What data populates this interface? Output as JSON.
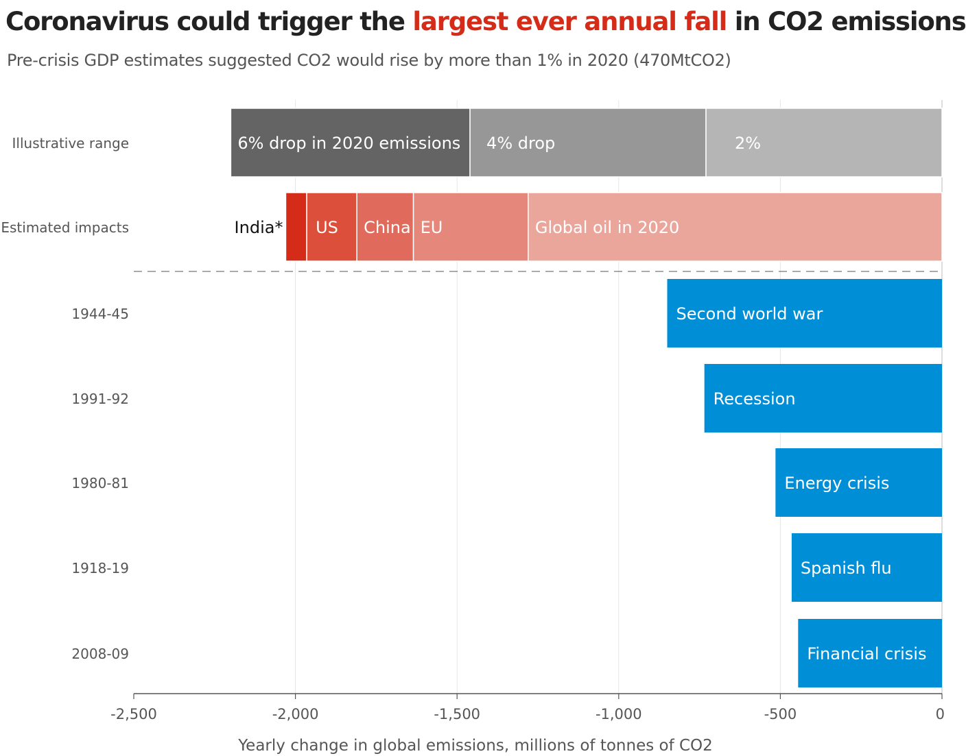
{
  "title": {
    "before": "Coronavirus could trigger the ",
    "highlight": "largest ever annual fall",
    "after": " in CO2 emissions"
  },
  "subtitle": "Pre-crisis GDP estimates suggested CO2 would rise by more than 1% in 2020 (470MtCO2)",
  "colors": {
    "grey_dark": "#646464",
    "grey_mid": "#979797",
    "grey_light": "#b5b5b5",
    "india": "#d52c1a",
    "us": "#dc4f3a",
    "china": "#e06b5c",
    "eu": "#e5887b",
    "oil": "#eba69c",
    "blue": "#008ed6",
    "highlight": "#d52c1a"
  },
  "chart_data": {
    "type": "bar",
    "orientation": "horizontal",
    "title": "Coronavirus could trigger the largest ever annual fall in CO2 emissions",
    "subtitle": "Pre-crisis GDP estimates suggested CO2 would rise by more than 1% in 2020 (470MtCO2)",
    "xlabel": "Yearly change in global emissions, millions of tonnes of CO2",
    "ylabel": "",
    "xlim": [
      -2500,
      0
    ],
    "xticks": [
      -2500,
      -2000,
      -1500,
      -1000,
      -500,
      0
    ],
    "xtick_labels": [
      "-2,500",
      "-2,000",
      "-1,500",
      "-1,000",
      "-500",
      "0"
    ],
    "grid": "vertical",
    "legend": "none",
    "rows": [
      {
        "category": "Illustrative range",
        "stacked": true,
        "segments": [
          {
            "label": "6% drop in 2020 emissions",
            "from": -2200,
            "to": -1460,
            "color": "grey_dark"
          },
          {
            "label": "4% drop",
            "from": -1460,
            "to": -730,
            "color": "grey_mid"
          },
          {
            "label": "2%",
            "from": -730,
            "to": 0,
            "color": "grey_light"
          }
        ]
      },
      {
        "category": "Estimated impacts",
        "stacked": true,
        "segments": [
          {
            "label": "India*",
            "from": -2030,
            "to": -1965,
            "color": "india",
            "label_outside": true
          },
          {
            "label": "US",
            "from": -1965,
            "to": -1810,
            "color": "us"
          },
          {
            "label": "China",
            "from": -1810,
            "to": -1635,
            "color": "china"
          },
          {
            "label": "EU",
            "from": -1635,
            "to": -1280,
            "color": "eu"
          },
          {
            "label": "Global oil in 2020",
            "from": -1280,
            "to": 0,
            "color": "oil"
          }
        ]
      },
      {
        "category": "1944-45",
        "label": "Second world war",
        "value": -850,
        "color": "blue"
      },
      {
        "category": "1991-92",
        "label": "Recession",
        "value": -735,
        "color": "blue"
      },
      {
        "category": "1980-81",
        "label": "Energy crisis",
        "value": -515,
        "color": "blue"
      },
      {
        "category": "1918-19",
        "label": "Spanish flu",
        "value": -465,
        "color": "blue"
      },
      {
        "category": "2008-09",
        "label": "Financial crisis",
        "value": -445,
        "color": "blue"
      }
    ]
  }
}
